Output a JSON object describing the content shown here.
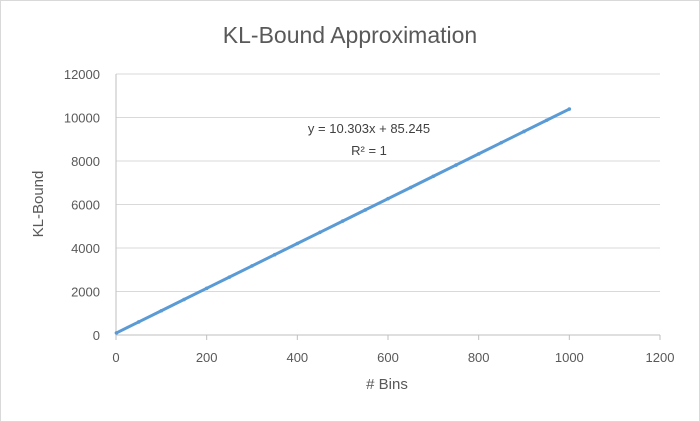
{
  "chart_data": {
    "type": "scatter",
    "title": "KL-Bound Approximation",
    "xlabel": "# Bins",
    "ylabel": "KL-Bound",
    "xlim": [
      0,
      1200
    ],
    "ylim": [
      0,
      12000
    ],
    "x_ticks": [
      0,
      200,
      400,
      600,
      800,
      1000,
      1200
    ],
    "y_ticks": [
      0,
      2000,
      4000,
      6000,
      8000,
      10000,
      12000
    ],
    "grid": "horizontal",
    "legend": "none",
    "series_color": "#5b9bd5",
    "series": [
      {
        "x": [
          1,
          50,
          100,
          150,
          200,
          250,
          300,
          350,
          400,
          450,
          500,
          550,
          600,
          650,
          700,
          750,
          800,
          850,
          900,
          950,
          1000
        ],
        "y": [
          95.5,
          600.4,
          1115.5,
          1630.7,
          2145.8,
          2661.0,
          3176.1,
          3691.3,
          4206.5,
          4721.6,
          5236.8,
          5751.9,
          6267.1,
          6782.2,
          7297.4,
          7812.5,
          8327.7,
          8842.8,
          9358.0,
          9873.1,
          10388.2
        ]
      }
    ],
    "trendline": {
      "equation": "y = 10.303x + 85.245",
      "r_squared": "R² = 1"
    }
  }
}
